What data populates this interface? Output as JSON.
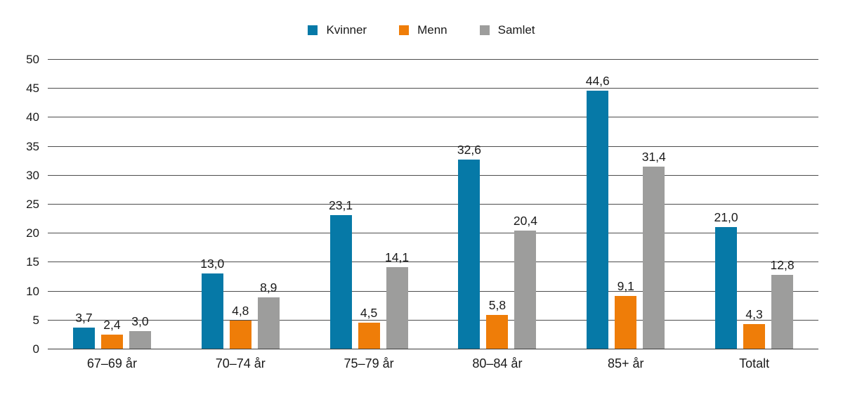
{
  "colors": {
    "kvinner": "#0679A7",
    "menn": "#EF7D08",
    "samlet": "#9D9D9C",
    "gridline": "#4d4d4d",
    "text": "#1a1a1a"
  },
  "legend": {
    "items": [
      {
        "label": "Kvinner",
        "color": "#0679A7"
      },
      {
        "label": "Menn",
        "color": "#EF7D08"
      },
      {
        "label": "Samlet",
        "color": "#9D9D9C"
      }
    ]
  },
  "chart_data": {
    "type": "bar",
    "title": "",
    "xlabel": "",
    "ylabel": "",
    "categories": [
      "67–69 år",
      "70–74 år",
      "75–79 år",
      "80–84 år",
      "85+ år",
      "Totalt"
    ],
    "series": [
      {
        "name": "Kvinner",
        "color": "#0679A7",
        "values": [
          3.7,
          13.0,
          23.1,
          32.6,
          44.6,
          21.0
        ],
        "value_labels": [
          "3,7",
          "13,0",
          "23,1",
          "32,6",
          "44,6",
          "21,0"
        ]
      },
      {
        "name": "Menn",
        "color": "#EF7D08",
        "values": [
          2.4,
          4.8,
          4.5,
          5.8,
          9.1,
          4.3
        ],
        "value_labels": [
          "2,4",
          "4,8",
          "4,5",
          "5,8",
          "9,1",
          "4,3"
        ]
      },
      {
        "name": "Samlet",
        "color": "#9D9D9C",
        "values": [
          3.0,
          8.9,
          14.1,
          20.4,
          31.4,
          12.8
        ],
        "value_labels": [
          "3,0",
          "8,9",
          "14,1",
          "20,4",
          "31,4",
          "12,8"
        ]
      }
    ],
    "ylim": [
      0,
      50
    ],
    "yticks": [
      0,
      5,
      10,
      15,
      20,
      25,
      30,
      35,
      40,
      45,
      50
    ],
    "ytick_labels": [
      "0",
      "5",
      "10",
      "15",
      "20",
      "25",
      "30",
      "35",
      "40",
      "45",
      "50"
    ],
    "grid": true,
    "legend_position": "top",
    "decimal_separator": ","
  }
}
